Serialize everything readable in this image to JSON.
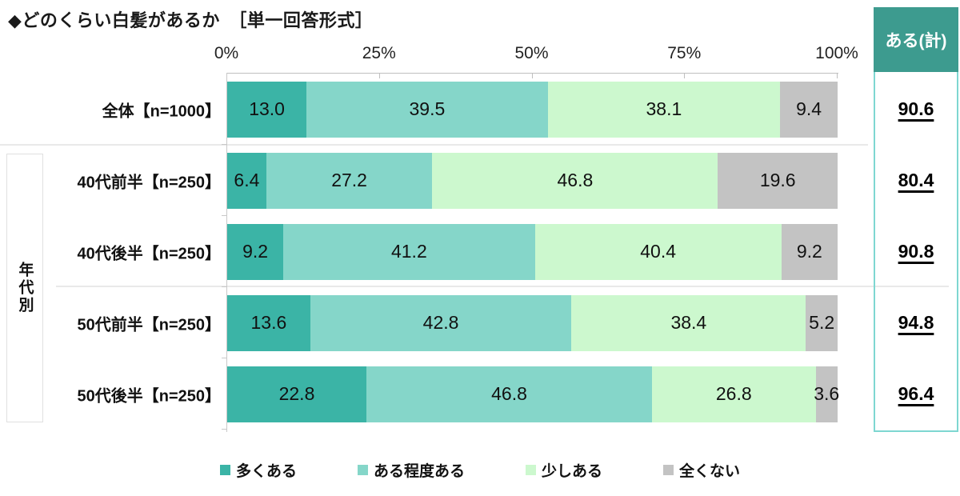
{
  "title": "◆どのくらい白髪があるか　［単一回答形式］",
  "group_label": "年代別",
  "summary_column": {
    "header": "ある(計)"
  },
  "colors": {
    "series": [
      "#3bb4a6",
      "#85d6c9",
      "#ccf8ce",
      "#c3c3c3"
    ],
    "summary_header_bg": "#3d9b8f",
    "summary_border": "#7ed7d1",
    "axis_line": "#bfbfbf",
    "separator": "#e9e9e9"
  },
  "chart_data": {
    "type": "bar",
    "stacked": true,
    "orientation": "horizontal",
    "title": "◆どのくらい白髪があるか　［単一回答形式］",
    "categories": [
      "全体【n=1000】",
      "40代前半【n=250】",
      "40代後半【n=250】",
      "50代前半【n=250】",
      "50代後半【n=250】"
    ],
    "series": [
      {
        "name": "多くある",
        "color": "#3bb4a6",
        "values": [
          13.0,
          6.4,
          9.2,
          13.6,
          22.8
        ]
      },
      {
        "name": "ある程度ある",
        "color": "#85d6c9",
        "values": [
          39.5,
          27.2,
          41.2,
          42.8,
          46.8
        ]
      },
      {
        "name": "少しある",
        "color": "#ccf8ce",
        "values": [
          38.1,
          46.8,
          40.4,
          38.4,
          26.8
        ]
      },
      {
        "name": "全くない",
        "color": "#c3c3c3",
        "values": [
          9.4,
          19.6,
          9.2,
          5.2,
          3.6
        ]
      }
    ],
    "x_ticks": [
      "0%",
      "25%",
      "50%",
      "75%",
      "100%"
    ],
    "xlim": [
      0,
      100
    ],
    "grid": false,
    "legend_position": "bottom",
    "summary": {
      "header": "ある(計)",
      "values": [
        90.6,
        80.4,
        90.8,
        94.8,
        96.4
      ]
    }
  }
}
